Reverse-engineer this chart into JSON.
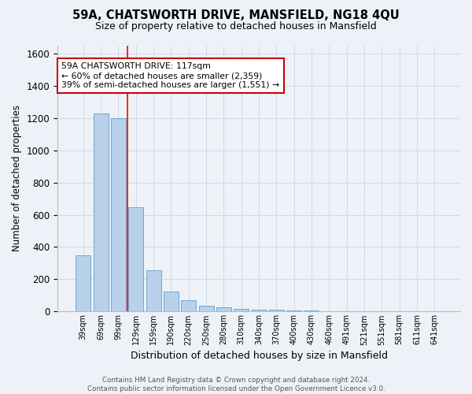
{
  "title": "59A, CHATSWORTH DRIVE, MANSFIELD, NG18 4QU",
  "subtitle": "Size of property relative to detached houses in Mansfield",
  "xlabel": "Distribution of detached houses by size in Mansfield",
  "ylabel": "Number of detached properties",
  "footer_line1": "Contains HM Land Registry data © Crown copyright and database right 2024.",
  "footer_line2": "Contains public sector information licensed under the Open Government Licence v3.0.",
  "categories": [
    "39sqm",
    "69sqm",
    "99sqm",
    "129sqm",
    "159sqm",
    "190sqm",
    "220sqm",
    "250sqm",
    "280sqm",
    "310sqm",
    "340sqm",
    "370sqm",
    "400sqm",
    "430sqm",
    "460sqm",
    "491sqm",
    "521sqm",
    "551sqm",
    "581sqm",
    "611sqm",
    "641sqm"
  ],
  "values": [
    350,
    1230,
    1200,
    645,
    258,
    125,
    70,
    38,
    25,
    15,
    10,
    10,
    8,
    8,
    0,
    0,
    0,
    0,
    0,
    0,
    0
  ],
  "bar_color": "#b8d0ea",
  "bar_edge_color": "#6fa8d0",
  "grid_color": "#d0d8e8",
  "bg_color": "#eef2f8",
  "red_line_x": 2.5,
  "annotation_text": "59A CHATSWORTH DRIVE: 117sqm\n← 60% of detached houses are smaller (2,359)\n39% of semi-detached houses are larger (1,551) →",
  "annotation_box_color": "#ffffff",
  "annotation_box_edge": "#cc0000",
  "ylim": [
    0,
    1650
  ],
  "yticks": [
    0,
    200,
    400,
    600,
    800,
    1000,
    1200,
    1400,
    1600
  ]
}
